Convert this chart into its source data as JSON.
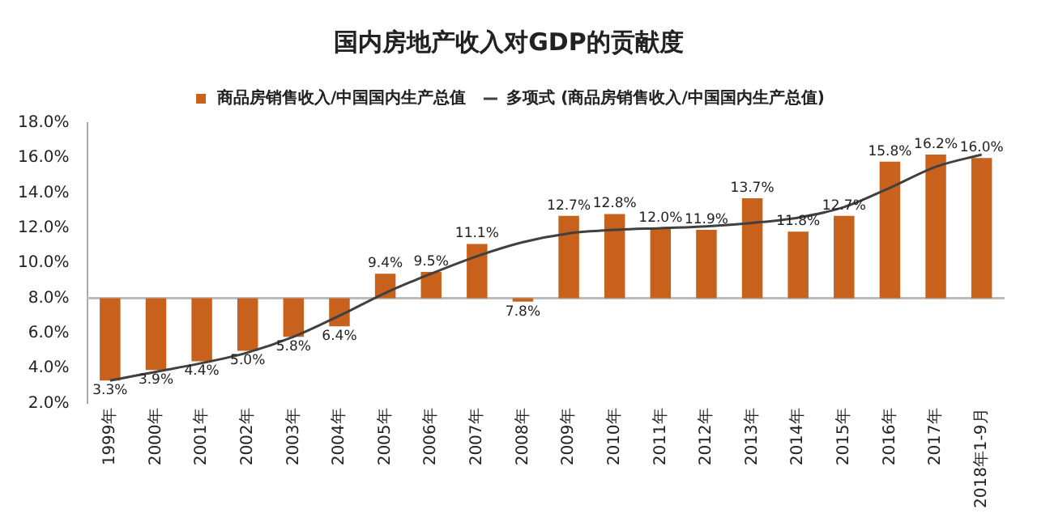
{
  "chart_data": {
    "type": "bar",
    "title": "国内房地产收入对GDP的贡献度",
    "categories": [
      "1999年",
      "2000年",
      "2001年",
      "2002年",
      "2003年",
      "2004年",
      "2005年",
      "2006年",
      "2007年",
      "2008年",
      "2009年",
      "2010年",
      "2011年",
      "2012年",
      "2013年",
      "2014年",
      "2015年",
      "2016年",
      "2017年",
      "2018年1-9月"
    ],
    "series": [
      {
        "name": "商品房销售收入/中国国内生产总值",
        "color": "#c8611b",
        "base": [
          8,
          8,
          8,
          8,
          8,
          8,
          8,
          8,
          8,
          8,
          8,
          8,
          8,
          8,
          8,
          8,
          8,
          8,
          8,
          8
        ],
        "values": [
          -4.7,
          -4.1,
          -3.6,
          -3.0,
          -2.2,
          -1.6,
          1.4,
          1.5,
          3.1,
          -0.2,
          4.7,
          4.8,
          4.0,
          3.9,
          5.7,
          3.8,
          4.7,
          7.8,
          8.2,
          8.0
        ],
        "value_labels": [
          "3.3%",
          "3.9%",
          "4.4%",
          "5.0%",
          "5.8%",
          "6.4%",
          "9.4%",
          "9.5%",
          "11.1%",
          "7.8%",
          "12.7%",
          "12.8%",
          "12.0%",
          "11.9%",
          "13.7%",
          "11.8%",
          "12.7%",
          "15.8%",
          "16.2%",
          "16.0%"
        ]
      },
      {
        "name": "多项式 (商品房销售收入/中国国内生产总值)",
        "type": "line",
        "color": "#404040",
        "values": [
          3.3,
          3.8,
          4.3,
          4.9,
          5.8,
          7.0,
          8.3,
          9.4,
          10.4,
          11.2,
          11.7,
          11.9,
          12.0,
          12.1,
          12.3,
          12.6,
          13.2,
          14.3,
          15.5,
          16.2
        ]
      }
    ],
    "ylim": [
      2,
      18
    ],
    "yticks": [
      {
        "value": 2,
        "label": "2.0%"
      },
      {
        "value": 4,
        "label": "4.0%"
      },
      {
        "value": 6,
        "label": "6.0%"
      },
      {
        "value": 8,
        "label": "8.0%"
      },
      {
        "value": 10,
        "label": "10.0%"
      },
      {
        "value": 12,
        "label": "12.0%"
      },
      {
        "value": 14,
        "label": "14.0%"
      },
      {
        "value": 16,
        "label": "16.0%"
      },
      {
        "value": 18,
        "label": "18.0%"
      }
    ],
    "ref_lines": [
      {
        "axis": "y",
        "value": 8,
        "color": "#bbbbbb"
      }
    ],
    "grid": false,
    "legend": "top"
  }
}
